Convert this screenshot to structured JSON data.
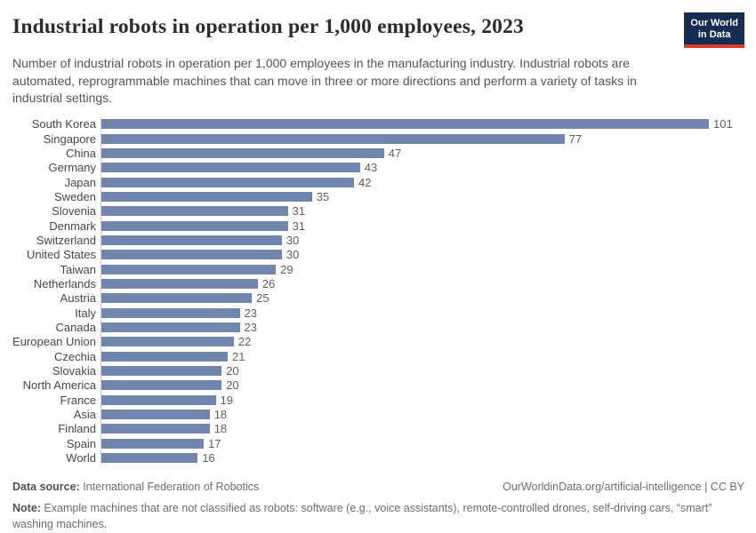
{
  "header": {
    "title": "Industrial robots in operation per 1,000 employees, 2023",
    "subtitle": "Number of industrial robots in operation per 1,000 employees in the manufacturing industry. Industrial robots are automated, reprogrammable machines that can move in three or more directions and perform a variety of tasks in industrial settings.",
    "logo": {
      "line1": "Our World",
      "line2": "in Data"
    }
  },
  "chart_data": {
    "type": "bar",
    "orientation": "horizontal",
    "title": "Industrial robots in operation per 1,000 employees, 2023",
    "categories": [
      "South Korea",
      "Singapore",
      "China",
      "Germany",
      "Japan",
      "Sweden",
      "Slovenia",
      "Denmark",
      "Switzerland",
      "United States",
      "Taiwan",
      "Netherlands",
      "Austria",
      "Italy",
      "Canada",
      "European Union",
      "Czechia",
      "Slovakia",
      "North America",
      "France",
      "Asia",
      "Finland",
      "Spain",
      "World"
    ],
    "values": [
      101,
      77,
      47,
      43,
      42,
      35,
      31,
      31,
      30,
      30,
      29,
      26,
      25,
      23,
      23,
      22,
      21,
      20,
      20,
      19,
      18,
      18,
      17,
      16
    ],
    "xlabel": "",
    "ylabel": "",
    "xlim": [
      0,
      101
    ],
    "grid": false,
    "legend": false,
    "value_labels": true,
    "colors": {
      "bar": "#7086ac",
      "axis_line": "#cccccc",
      "category_label": "#474747",
      "value_label": "#5f5f5f",
      "logo_bg": "#142d50",
      "logo_stripe": "#d73c34"
    }
  },
  "footer": {
    "data_source_label": "Data source:",
    "data_source": " International Federation of Robotics",
    "link": "OurWorldinData.org/artificial-intelligence | CC BY",
    "note_label": "Note:",
    "note": " Example machines that are not classified as robots: software (e.g., voice assistants), remote-controlled drones, self-driving cars, “smart” washing machines."
  }
}
